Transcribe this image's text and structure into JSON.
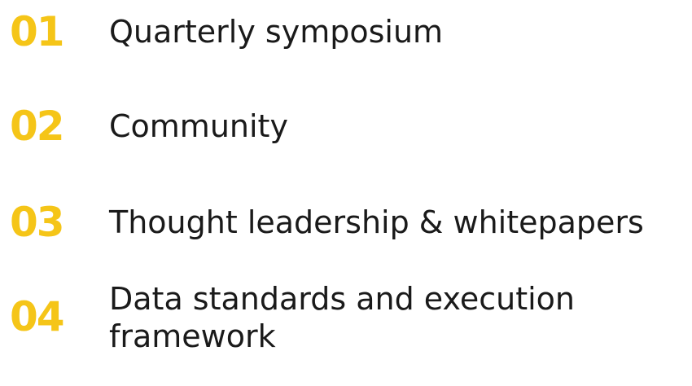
{
  "colors": {
    "accent": "#F5C518",
    "text": "#1A1A1A",
    "background": "#FFFFFF"
  },
  "items": [
    {
      "number": "01",
      "label": "Quarterly symposium"
    },
    {
      "number": "02",
      "label": "Community"
    },
    {
      "number": "03",
      "label": "Thought leadership & whitepapers"
    },
    {
      "number": "04",
      "label_lines": [
        "Data standards and execution",
        "framework"
      ]
    }
  ]
}
